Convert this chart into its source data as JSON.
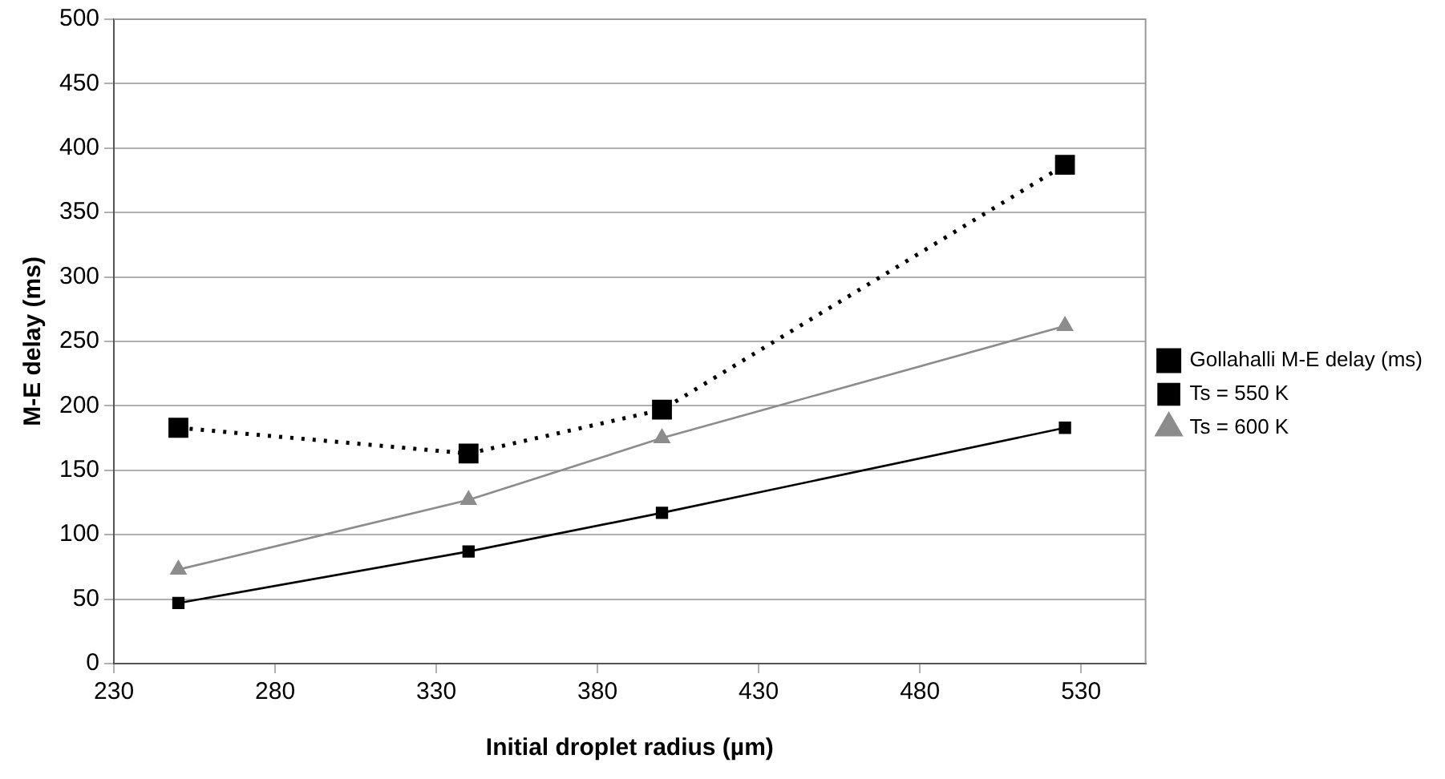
{
  "chart_data": {
    "type": "line",
    "xlabel": "Initial droplet radius (µm)",
    "ylabel": "M-E delay (ms)",
    "x": [
      250,
      340,
      400,
      525
    ],
    "series": [
      {
        "name": "Gollahalli M-E delay (ms)",
        "color": "#000000",
        "values": [
          183,
          163,
          197,
          387
        ],
        "marker": "square",
        "line_style": "dotted"
      },
      {
        "name": "Ts = 550 K",
        "color": "#000000",
        "values": [
          47,
          87,
          117,
          183
        ],
        "marker": "square",
        "line_style": "solid"
      },
      {
        "name": "Ts = 600 K",
        "color": "#8c8c8c",
        "values": [
          73,
          127,
          175,
          262
        ],
        "marker": "triangle",
        "line_style": "solid"
      }
    ],
    "xlim": [
      230,
      550
    ],
    "xticks": [
      230,
      280,
      330,
      380,
      430,
      480,
      530
    ],
    "ylim": [
      0,
      500
    ],
    "yticks": [
      0,
      50,
      100,
      150,
      200,
      250,
      300,
      350,
      400,
      450,
      500
    ],
    "grid": "y",
    "legend": "right"
  }
}
